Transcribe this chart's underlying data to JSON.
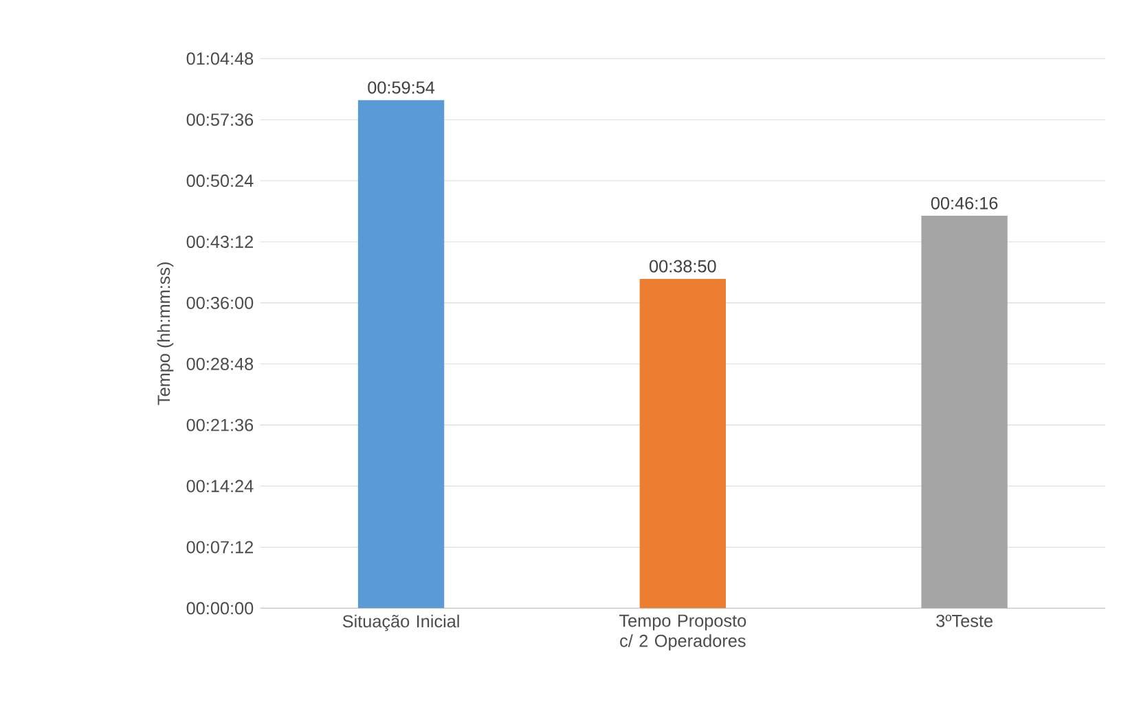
{
  "chart_data": {
    "type": "bar",
    "ylabel": "Tempo (hh:mm:ss)",
    "categories": [
      "Situação Inicial",
      "Tempo Proposto c/ 2 Operadores",
      "3ºTeste"
    ],
    "values": [
      3594,
      2330,
      2776
    ],
    "colors": [
      "#5b9bd5",
      "#ed7d31",
      "#a5a5a5"
    ],
    "value_labels": [
      "00:59:54",
      "00:38:50",
      "00:46:16"
    ],
    "ylim": [
      0,
      3888
    ],
    "yticks": [
      {
        "value": 0,
        "label": "00:00:00"
      },
      {
        "value": 432,
        "label": "00:07:12"
      },
      {
        "value": 864,
        "label": "00:14:24"
      },
      {
        "value": 1296,
        "label": "00:21:36"
      },
      {
        "value": 1728,
        "label": "00:28:48"
      },
      {
        "value": 2160,
        "label": "00:36:00"
      },
      {
        "value": 2592,
        "label": "00:43:12"
      },
      {
        "value": 3024,
        "label": "00:50:24"
      },
      {
        "value": 3456,
        "label": "00:57:36"
      },
      {
        "value": 3888,
        "label": "01:04:48"
      }
    ],
    "grid": "y"
  }
}
